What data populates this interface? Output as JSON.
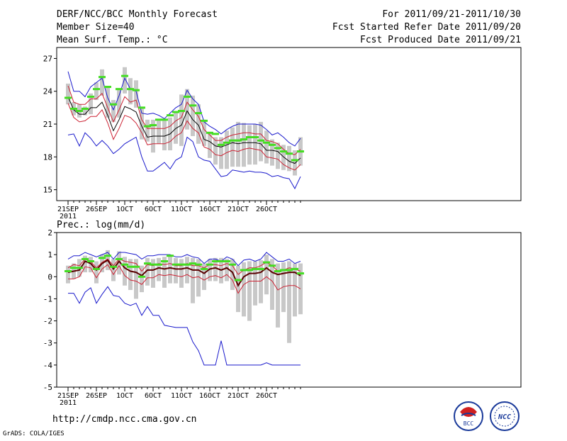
{
  "header": {
    "title": "DERF/NCC/BCC Monthly Forecast",
    "member_size": "Member Size=40",
    "variable": "Mean Surf. Temp.: °C",
    "period": "For 2011/09/21-2011/10/30",
    "refer_date": "Fcst Started Refer Date 2011/09/20",
    "produced_date": "Fcst Produced Date 2011/09/21"
  },
  "footer": {
    "url": "http://cmdp.ncc.cma.gov.cn",
    "credit": "GrADS: COLA/IGES",
    "logo_bcc_text": "BCC",
    "logo_ncc_text": "NCC"
  },
  "colors": {
    "ensemble_box": "#c8c8c8",
    "median": "#44dd22",
    "mean": "#000000",
    "spread": "#cc2233",
    "extreme": "#1a1acc",
    "dark_mean": "#5a0000"
  },
  "chart_data": [
    {
      "type": "line",
      "title": "Mean Surf. Temp.: °C",
      "xlabel": "",
      "ylabel": "°C",
      "ylim": [
        14,
        28
      ],
      "yticks": [
        15,
        18,
        21,
        24,
        27
      ],
      "x_days": 40,
      "xticks": [
        {
          "day": 1,
          "label": "21SEP"
        },
        {
          "day": 6,
          "label": "26SEP"
        },
        {
          "day": 11,
          "label": "1OCT"
        },
        {
          "day": 16,
          "label": "6OCT"
        },
        {
          "day": 21,
          "label": "11OCT"
        },
        {
          "day": 26,
          "label": "16OCT"
        },
        {
          "day": 31,
          "label": "21OCT"
        },
        {
          "day": 36,
          "label": "26OCT"
        }
      ],
      "year_label": "2011",
      "series": [
        {
          "name": "maximum",
          "values": [
            25.8,
            24.0,
            24.0,
            23.5,
            24.4,
            24.8,
            25.2,
            23.4,
            22.3,
            23.6,
            25.2,
            24.2,
            24.0,
            22.0,
            21.9,
            22.0,
            21.8,
            21.5,
            22.0,
            22.5,
            22.8,
            24.1,
            23.3,
            22.8,
            21.2,
            20.8,
            20.5,
            20.1,
            20.5,
            20.8,
            21.0,
            21.0,
            21.0,
            21.0,
            20.9,
            20.5,
            20.0,
            20.2,
            19.8,
            19.3,
            19.0,
            19.7
          ]
        },
        {
          "name": "spread_upper",
          "values": [
            24.5,
            23.0,
            22.8,
            22.8,
            23.3,
            23.3,
            23.8,
            22.5,
            21.2,
            22.3,
            23.5,
            23.0,
            23.2,
            21.4,
            20.6,
            20.6,
            20.6,
            20.6,
            20.8,
            21.3,
            21.6,
            23.0,
            22.3,
            21.7,
            20.5,
            20.0,
            19.5,
            19.5,
            19.8,
            20.0,
            20.1,
            20.2,
            20.2,
            20.1,
            20.1,
            19.5,
            19.4,
            19.2,
            18.7,
            18.3,
            18.2,
            18.7
          ]
        },
        {
          "name": "ensemble_mean",
          "values": [
            23.5,
            22.3,
            21.9,
            21.9,
            22.5,
            22.5,
            23.0,
            21.8,
            20.4,
            21.4,
            22.6,
            22.4,
            22.1,
            20.8,
            19.8,
            19.9,
            19.9,
            19.9,
            20.1,
            20.6,
            20.9,
            22.2,
            21.4,
            20.9,
            19.6,
            19.4,
            19.0,
            18.9,
            19.1,
            19.3,
            19.2,
            19.3,
            19.3,
            19.3,
            19.2,
            18.6,
            18.6,
            18.5,
            18.0,
            17.6,
            17.4,
            17.9
          ]
        },
        {
          "name": "spread_lower",
          "values": [
            22.9,
            21.6,
            21.2,
            21.3,
            21.7,
            21.7,
            22.3,
            21.1,
            19.6,
            20.6,
            21.8,
            21.6,
            21.1,
            20.2,
            19.1,
            19.2,
            19.2,
            19.2,
            19.4,
            19.9,
            20.2,
            21.3,
            20.6,
            20.2,
            18.9,
            18.7,
            18.2,
            18.1,
            18.4,
            18.6,
            18.5,
            18.7,
            18.8,
            18.7,
            18.6,
            18.0,
            17.9,
            17.8,
            17.3,
            17.0,
            16.8,
            17.3
          ]
        },
        {
          "name": "minimum",
          "values": [
            20.0,
            20.1,
            19.0,
            20.2,
            19.7,
            19.0,
            19.5,
            19.0,
            18.3,
            18.7,
            19.2,
            19.5,
            19.8,
            18.0,
            16.7,
            16.7,
            17.1,
            17.5,
            16.9,
            17.7,
            18.0,
            19.8,
            19.4,
            18.0,
            17.7,
            17.6,
            16.9,
            16.2,
            16.3,
            16.8,
            16.7,
            16.6,
            16.7,
            16.6,
            16.6,
            16.5,
            16.2,
            16.3,
            16.1,
            16.0,
            15.1,
            16.2
          ]
        }
      ],
      "median": [
        23.4,
        22.4,
        22.2,
        22.4,
        23.5,
        24.2,
        25.3,
        24.4,
        22.8,
        24.2,
        25.4,
        24.2,
        24.1,
        22.5,
        20.8,
        20.9,
        21.4,
        21.4,
        21.8,
        22.1,
        22.2,
        23.5,
        22.7,
        22.0,
        21.3,
        20.2,
        20.1,
        19.1,
        19.3,
        19.5,
        19.5,
        19.6,
        19.8,
        19.8,
        19.5,
        19.3,
        19.1,
        18.8,
        18.5,
        18.3,
        17.7,
        18.5
      ],
      "box": [
        [
          24.7,
          22.8
        ],
        [
          23.0,
          21.8
        ],
        [
          22.8,
          21.6
        ],
        [
          22.6,
          21.8
        ],
        [
          23.8,
          21.9
        ],
        [
          24.8,
          23.2
        ],
        [
          26.0,
          23.6
        ],
        [
          24.4,
          21.6
        ],
        [
          23.2,
          21.2
        ],
        [
          24.2,
          21.6
        ],
        [
          26.2,
          23.8
        ],
        [
          25.2,
          22.8
        ],
        [
          25.0,
          22.5
        ],
        [
          22.6,
          19.6
        ],
        [
          21.4,
          19.4
        ],
        [
          21.4,
          18.4
        ],
        [
          21.3,
          19.2
        ],
        [
          21.5,
          18.6
        ],
        [
          21.6,
          18.6
        ],
        [
          22.1,
          19.2
        ],
        [
          23.7,
          19.0
        ],
        [
          24.2,
          20.5
        ],
        [
          23.6,
          19.9
        ],
        [
          22.8,
          19.2
        ],
        [
          21.4,
          19.0
        ],
        [
          20.3,
          17.9
        ],
        [
          19.8,
          17.3
        ],
        [
          19.8,
          16.9
        ],
        [
          20.4,
          16.9
        ],
        [
          20.7,
          17.1
        ],
        [
          21.2,
          17.1
        ],
        [
          21.1,
          17.1
        ],
        [
          20.9,
          17.3
        ],
        [
          21.0,
          17.3
        ],
        [
          21.2,
          17.6
        ],
        [
          20.4,
          17.4
        ],
        [
          19.6,
          17.2
        ],
        [
          19.3,
          16.9
        ],
        [
          19.1,
          16.8
        ],
        [
          19.0,
          16.7
        ],
        [
          18.6,
          16.3
        ],
        [
          19.8,
          17.2
        ]
      ]
    },
    {
      "type": "line",
      "title": "Prec.: log(mm/d)",
      "xlabel": "",
      "ylabel": "log(mm/d)",
      "ylim": [
        -5,
        2
      ],
      "yticks": [
        -5,
        -4,
        -3,
        -2,
        -1,
        0,
        1,
        2
      ],
      "x_days": 40,
      "xticks": [
        {
          "day": 1,
          "label": "21SEP"
        },
        {
          "day": 6,
          "label": "26SEP"
        },
        {
          "day": 11,
          "label": "1OCT"
        },
        {
          "day": 16,
          "label": "6OCT"
        },
        {
          "day": 21,
          "label": "11OCT"
        },
        {
          "day": 26,
          "label": "16OCT"
        },
        {
          "day": 31,
          "label": "21OCT"
        },
        {
          "day": 36,
          "label": "26OCT"
        }
      ],
      "year_label": "2011",
      "series": [
        {
          "name": "maximum",
          "values": [
            0.8,
            0.95,
            0.95,
            1.1,
            1.0,
            0.9,
            1.0,
            1.1,
            0.8,
            1.1,
            1.1,
            1.05,
            1.0,
            0.8,
            0.95,
            0.95,
            1.0,
            1.0,
            1.0,
            0.9,
            0.9,
            1.0,
            0.9,
            0.85,
            0.6,
            0.8,
            0.8,
            0.7,
            0.9,
            0.8,
            0.5,
            0.75,
            0.8,
            0.7,
            0.8,
            1.1,
            0.9,
            0.7,
            0.7,
            0.8,
            0.6,
            0.7
          ]
        },
        {
          "name": "spread_upper",
          "values": [
            0.4,
            0.55,
            0.5,
            0.8,
            0.7,
            0.4,
            0.65,
            0.8,
            0.5,
            0.8,
            0.7,
            0.65,
            0.6,
            0.25,
            0.55,
            0.5,
            0.6,
            0.55,
            0.6,
            0.5,
            0.5,
            0.6,
            0.5,
            0.5,
            0.4,
            0.55,
            0.55,
            0.5,
            0.6,
            0.5,
            0.1,
            0.3,
            0.4,
            0.4,
            0.5,
            0.65,
            0.5,
            0.25,
            0.3,
            0.4,
            0.35,
            0.25
          ]
        },
        {
          "name": "ensemble_mean",
          "values": [
            0.2,
            0.25,
            0.3,
            0.7,
            0.6,
            0.3,
            0.6,
            0.75,
            0.35,
            0.7,
            0.4,
            0.25,
            0.2,
            0.05,
            0.3,
            0.3,
            0.4,
            0.35,
            0.4,
            0.35,
            0.35,
            0.4,
            0.3,
            0.3,
            0.15,
            0.35,
            0.4,
            0.3,
            0.4,
            0.2,
            -0.4,
            0.0,
            0.15,
            0.15,
            0.2,
            0.4,
            0.2,
            0.1,
            0.15,
            0.2,
            0.2,
            0.05
          ]
        },
        {
          "name": "spread_lower",
          "values": [
            -0.1,
            -0.1,
            0.0,
            0.45,
            0.4,
            -0.05,
            0.35,
            0.55,
            0.1,
            0.5,
            0.05,
            -0.15,
            -0.2,
            -0.35,
            -0.05,
            -0.05,
            0.1,
            0.05,
            0.1,
            0.05,
            0.0,
            0.1,
            -0.05,
            0.0,
            -0.15,
            0.0,
            0.05,
            -0.05,
            0.1,
            -0.15,
            -0.75,
            -0.35,
            -0.2,
            -0.2,
            -0.2,
            0.0,
            -0.2,
            -0.6,
            -0.45,
            -0.4,
            -0.4,
            -0.55
          ]
        },
        {
          "name": "minimum",
          "values": [
            -0.75,
            -0.75,
            -1.2,
            -0.7,
            -0.5,
            -1.2,
            -0.8,
            -0.45,
            -0.85,
            -0.9,
            -1.2,
            -1.3,
            -1.2,
            -1.75,
            -1.35,
            -1.75,
            -1.75,
            -2.2,
            -2.25,
            -2.3,
            -2.3,
            -2.3,
            -2.95,
            -3.35,
            -4.0,
            -4.0,
            -4.0,
            -2.9,
            -4.0,
            -4.0,
            -4.0,
            -4.0,
            -4.0,
            -4.0,
            -4.0,
            -3.9,
            -4.0,
            -4.0,
            -4.0,
            -4.0,
            -4.0,
            -4.0
          ]
        }
      ],
      "median": [
        0.25,
        0.4,
        0.4,
        0.8,
        0.7,
        0.35,
        0.85,
        0.95,
        0.45,
        0.8,
        0.55,
        0.45,
        0.45,
        0.0,
        0.6,
        0.55,
        0.55,
        0.7,
        0.95,
        0.55,
        0.55,
        0.55,
        0.6,
        0.55,
        0.35,
        0.55,
        0.7,
        0.7,
        0.7,
        0.55,
        -0.15,
        0.3,
        0.3,
        0.35,
        0.35,
        0.65,
        0.5,
        0.25,
        0.3,
        0.3,
        0.35,
        0.15
      ],
      "box": [
        [
          0.5,
          -0.3
        ],
        [
          0.6,
          -0.1
        ],
        [
          0.8,
          0.0
        ],
        [
          0.95,
          0.2
        ],
        [
          0.9,
          0.2
        ],
        [
          0.7,
          -0.3
        ],
        [
          1.0,
          0.2
        ],
        [
          1.2,
          0.3
        ],
        [
          0.8,
          -0.2
        ],
        [
          1.15,
          0.1
        ],
        [
          0.9,
          -0.4
        ],
        [
          0.8,
          -0.6
        ],
        [
          0.8,
          -1.0
        ],
        [
          0.5,
          -0.7
        ],
        [
          0.85,
          -0.4
        ],
        [
          0.8,
          -0.5
        ],
        [
          0.85,
          -0.2
        ],
        [
          0.9,
          -0.5
        ],
        [
          1.0,
          -0.3
        ],
        [
          0.85,
          -0.3
        ],
        [
          0.8,
          -0.5
        ],
        [
          0.9,
          -0.3
        ],
        [
          0.85,
          -1.2
        ],
        [
          0.8,
          -0.9
        ],
        [
          0.6,
          -0.6
        ],
        [
          0.8,
          -0.2
        ],
        [
          0.85,
          -0.2
        ],
        [
          0.85,
          -0.3
        ],
        [
          0.8,
          -0.2
        ],
        [
          0.8,
          -0.6
        ],
        [
          0.5,
          -1.6
        ],
        [
          0.65,
          -1.8
        ],
        [
          0.7,
          -2.0
        ],
        [
          0.7,
          -1.3
        ],
        [
          0.75,
          -1.2
        ],
        [
          1.0,
          -0.8
        ],
        [
          0.8,
          -1.5
        ],
        [
          0.6,
          -2.3
        ],
        [
          0.65,
          -1.6
        ],
        [
          0.7,
          -3.0
        ],
        [
          0.6,
          -1.8
        ],
        [
          0.6,
          -1.7
        ]
      ]
    }
  ]
}
